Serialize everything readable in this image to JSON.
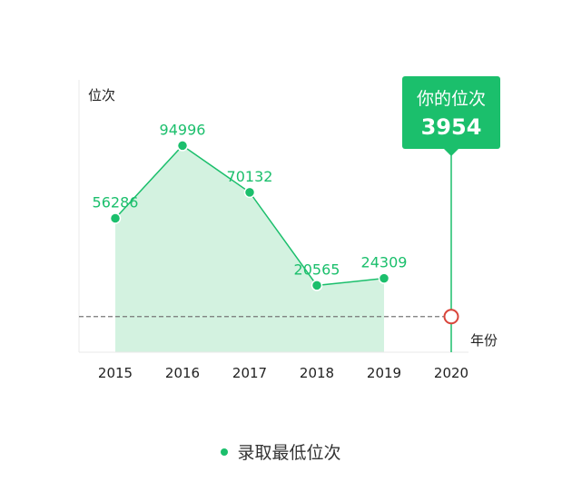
{
  "chart_data": {
    "type": "area",
    "ylabel": "位次",
    "xlabel": "年份",
    "categories": [
      "2015",
      "2016",
      "2017",
      "2018",
      "2019",
      "2020"
    ],
    "series": [
      {
        "name": "录取最低位次",
        "values": [
          56286,
          94996,
          70132,
          20565,
          24309,
          null
        ]
      }
    ],
    "ylim": [
      -15000,
      130000
    ],
    "highlight": {
      "category": "2020",
      "value": 3954,
      "title": "你的位次",
      "value_label": "3954"
    },
    "reference_line": {
      "value": 3954,
      "style": "dashed"
    },
    "legend": {
      "position": "bottom-center"
    },
    "grid": false,
    "colors": {
      "line": "#1bbf6c",
      "fill": "#d3f2e0",
      "tooltip_bg": "#1bbf6c",
      "marker_ring": "#d9453b",
      "reference": "#777777"
    }
  }
}
